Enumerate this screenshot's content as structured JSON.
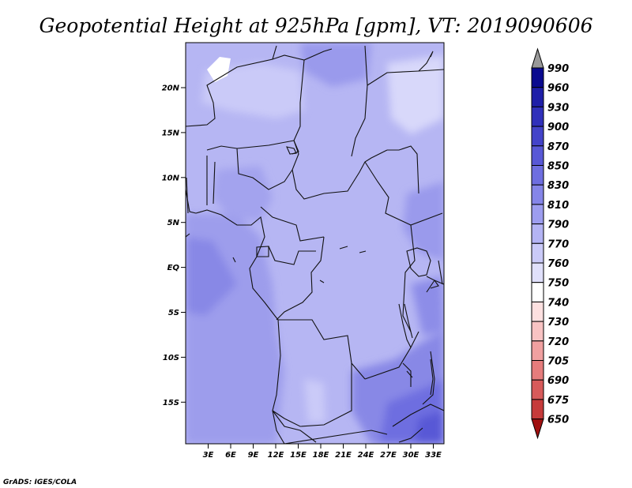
{
  "title": "Geopotential Height at 925hPa [gpm], VT: 2019090606",
  "credit": "GrADS: IGES/COLA",
  "map": {
    "lat_labels": [
      {
        "lat": 20,
        "label": "20N"
      },
      {
        "lat": 15,
        "label": "15N"
      },
      {
        "lat": 10,
        "label": "10N"
      },
      {
        "lat": 5,
        "label": "5N"
      },
      {
        "lat": 0,
        "label": "EQ"
      },
      {
        "lat": -5,
        "label": "5S"
      },
      {
        "lat": -10,
        "label": "10S"
      },
      {
        "lat": -15,
        "label": "15S"
      }
    ],
    "lon_labels": [
      {
        "lon": 3,
        "label": "3E"
      },
      {
        "lon": 6,
        "label": "6E"
      },
      {
        "lon": 9,
        "label": "9E"
      },
      {
        "lon": 12,
        "label": "12E"
      },
      {
        "lon": 15,
        "label": "15E"
      },
      {
        "lon": 18,
        "label": "18E"
      },
      {
        "lon": 21,
        "label": "21E"
      },
      {
        "lon": 24,
        "label": "24E"
      },
      {
        "lon": 27,
        "label": "27E"
      },
      {
        "lon": 30,
        "label": "30E"
      },
      {
        "lon": 33,
        "label": "33E"
      }
    ]
  },
  "colorbar": {
    "levels": [
      "990",
      "960",
      "930",
      "900",
      "870",
      "850",
      "830",
      "810",
      "790",
      "770",
      "760",
      "750",
      "740",
      "730",
      "720",
      "705",
      "690",
      "675",
      "650"
    ],
    "colors": [
      "#0a0a8f",
      "#1e1ea8",
      "#3030bb",
      "#4343c9",
      "#5858d6",
      "#6e6ee0",
      "#8585e8",
      "#9d9def",
      "#b4b4f4",
      "#cacaf8",
      "#e0e0fb",
      "#ffffff",
      "#fde0e0",
      "#f8c3c3",
      "#f0a0a0",
      "#e57c7c",
      "#d75a5a",
      "#c63b3b",
      "#b42222",
      "#a01010"
    ],
    "top_arrow_color": "#999999"
  }
}
